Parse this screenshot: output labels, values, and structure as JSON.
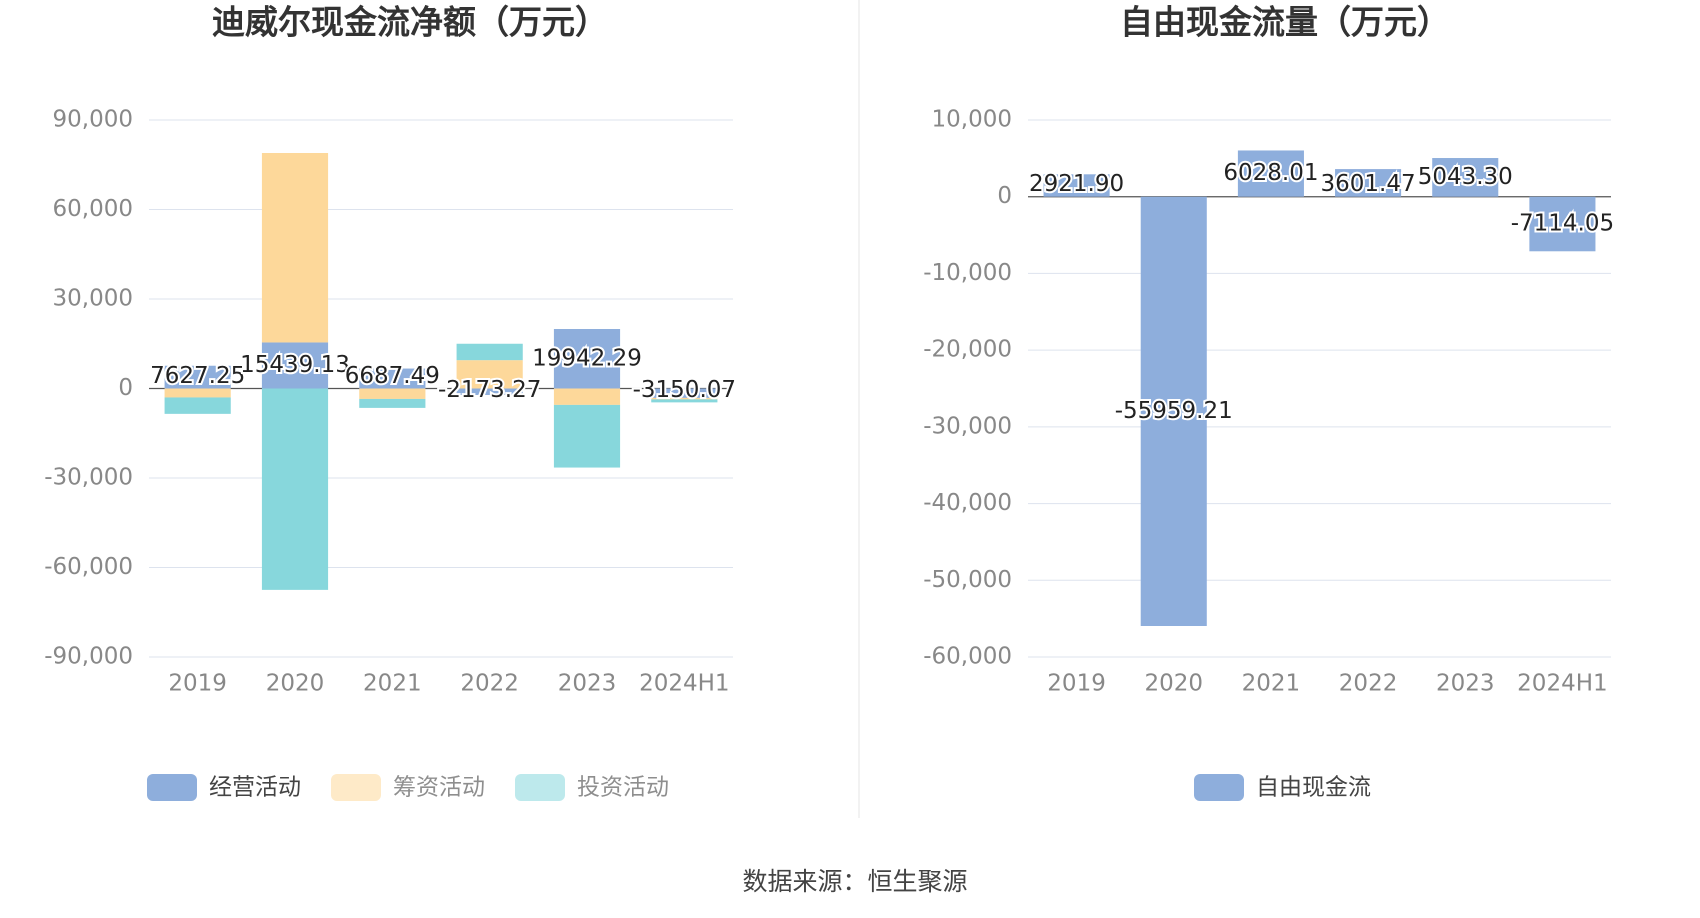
{
  "chart_data": [
    {
      "type": "stacked_bar",
      "title": "迪威尔现金流净额（万元）",
      "categories": [
        "2019",
        "2020",
        "2021",
        "2022",
        "2023",
        "2024H1"
      ],
      "series": [
        {
          "name": "经营活动",
          "color": "#8eaedc",
          "values": [
            7627.25,
            15439.13,
            6687.49,
            -2173.27,
            19942.29,
            -3150.07
          ],
          "value_labels": [
            "7627.25",
            "15439.13",
            "6687.49",
            "-2173.27",
            "19942.29",
            "-3150.07"
          ]
        },
        {
          "name": "筹资活动",
          "color": "#fdd89a",
          "values": [
            -3000,
            63500,
            -3500,
            9500,
            -5500,
            -500
          ]
        },
        {
          "name": "投资活动",
          "color": "#87d7dc",
          "values": [
            -5500,
            -67500,
            -3000,
            5500,
            -21000,
            -1000
          ]
        }
      ],
      "ylim": [
        -90000,
        90000
      ],
      "yticks": [
        {
          "value": -90000,
          "label": "-90,000"
        },
        {
          "value": -60000,
          "label": "-60,000"
        },
        {
          "value": -30000,
          "label": "-30,000"
        },
        0,
        {
          "value": 30000,
          "label": "30,000"
        },
        {
          "value": 60000,
          "label": "60,000"
        },
        {
          "value": 90000,
          "label": "90,000"
        }
      ],
      "grid": true
    },
    {
      "type": "bar",
      "title": "自由现金流量（万元）",
      "categories": [
        "2019",
        "2020",
        "2021",
        "2022",
        "2023",
        "2024H1"
      ],
      "series": [
        {
          "name": "自由现金流",
          "color": "#8eaedc",
          "values": [
            2921.9,
            -55959.21,
            6028.01,
            3601.47,
            5043.3,
            -7114.05
          ],
          "value_labels": [
            "2921.90",
            "-55959.21",
            "6028.01",
            "3601.47",
            "5043.30",
            "-7114.05"
          ]
        }
      ],
      "ylim": [
        -60000,
        10000
      ],
      "yticks": [
        {
          "value": -60000,
          "label": "-60,000"
        },
        {
          "value": -50000,
          "label": "-50,000"
        },
        {
          "value": -40000,
          "label": "-40,000"
        },
        {
          "value": -30000,
          "label": "-30,000"
        },
        {
          "value": -20000,
          "label": "-20,000"
        },
        {
          "value": -10000,
          "label": "-10,000"
        },
        0,
        {
          "value": 10000,
          "label": "10,000"
        }
      ],
      "grid": true
    }
  ],
  "source": "数据来源：恒生聚源"
}
